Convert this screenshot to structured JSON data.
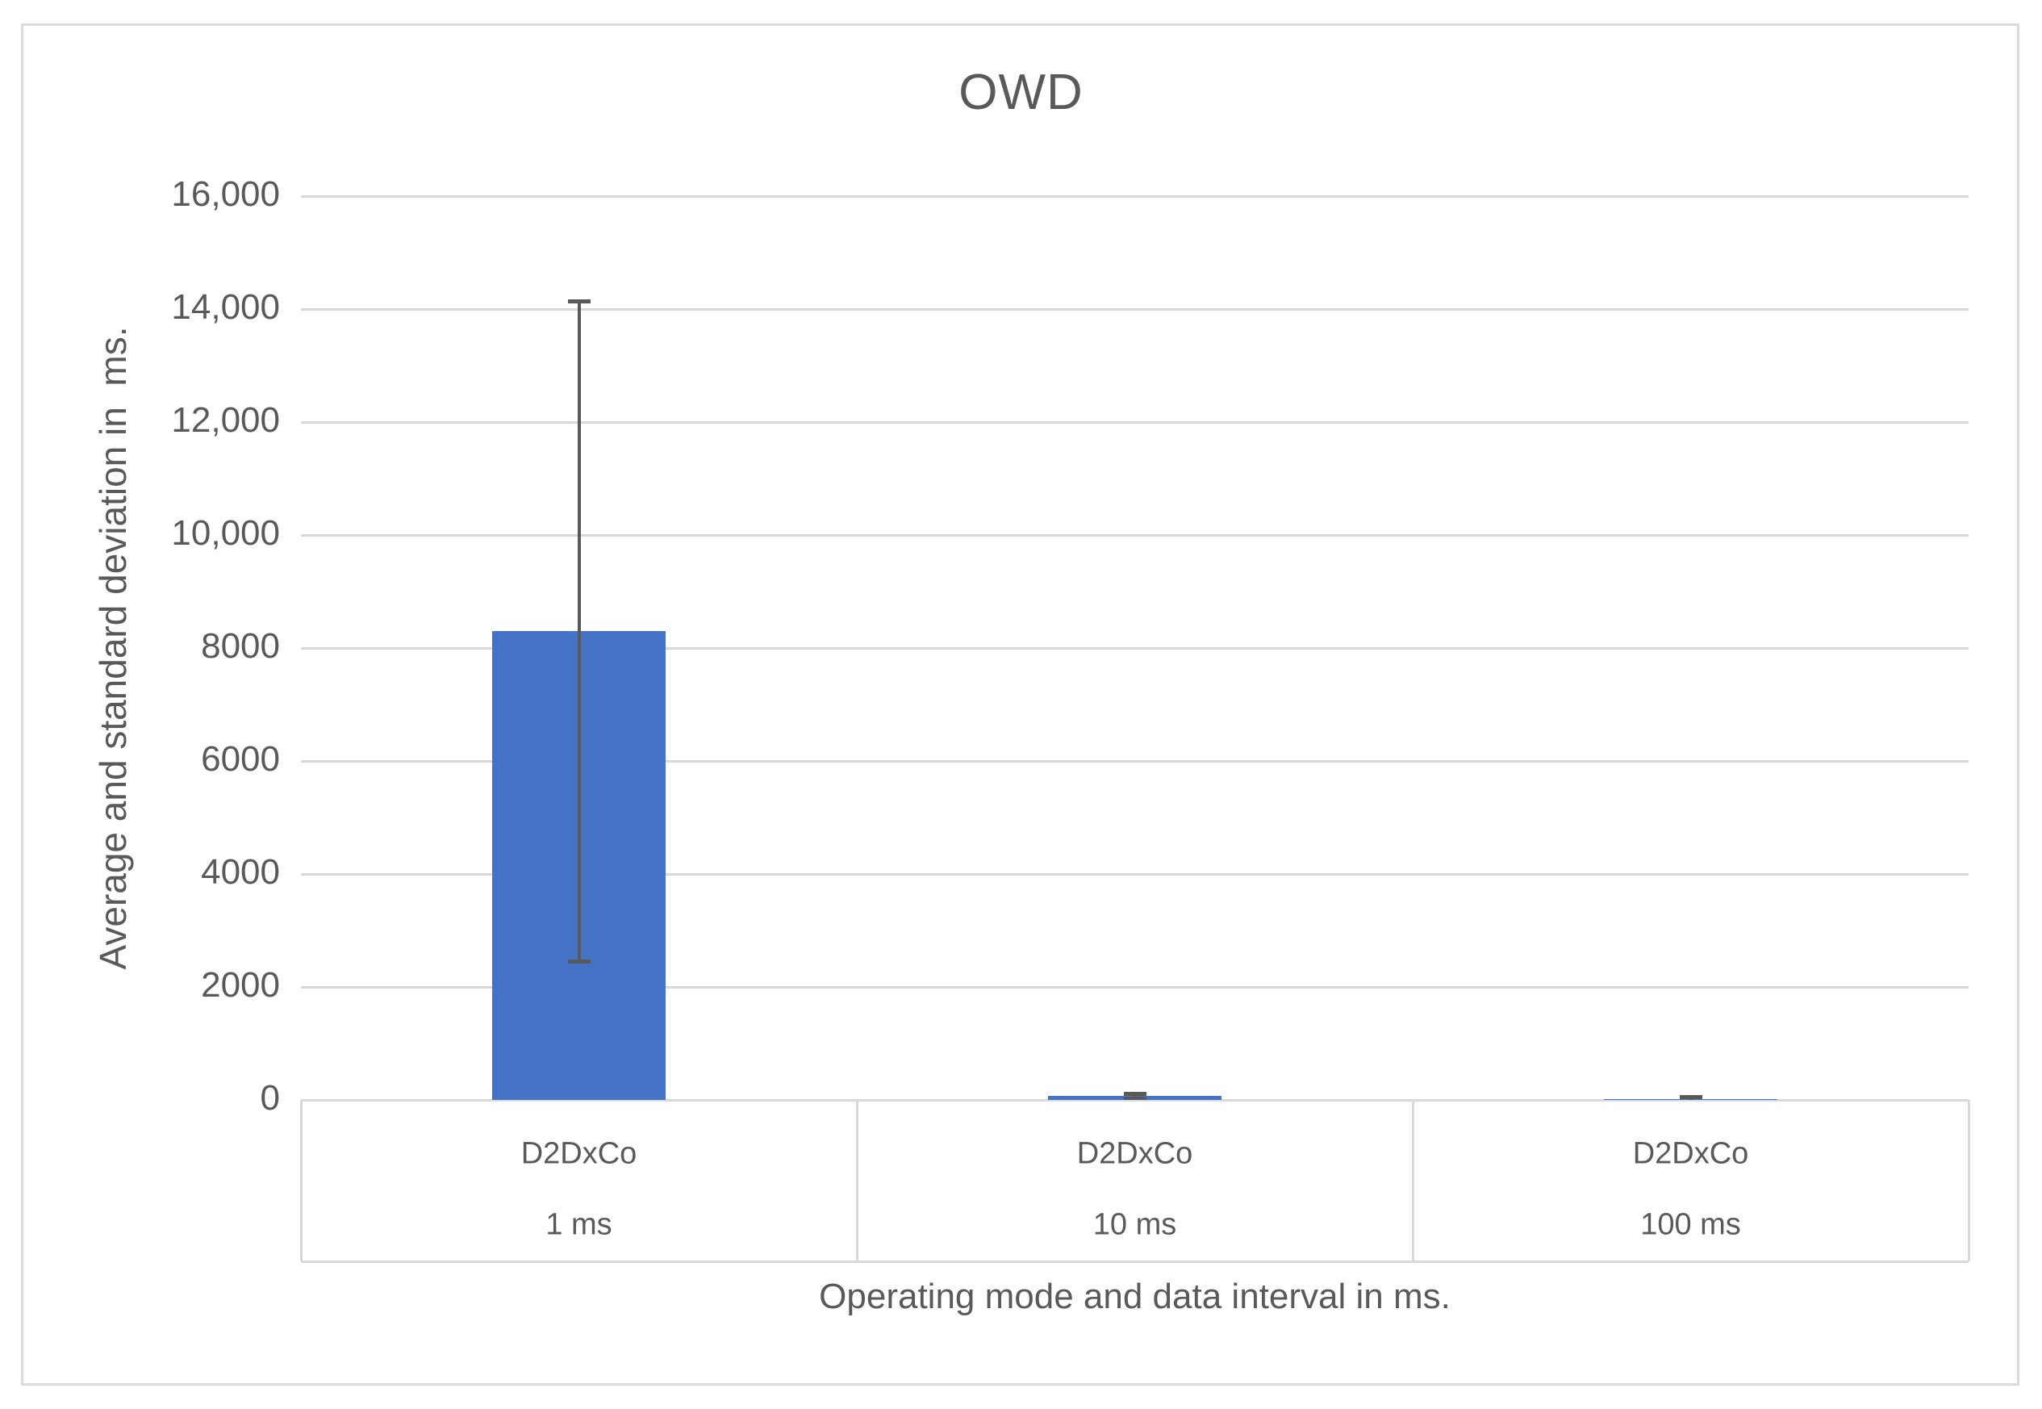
{
  "window": {
    "background": "#ffffff",
    "frame_border_color": "#dbdbdb"
  },
  "chart_data": {
    "type": "bar",
    "title": "OWD",
    "ylabel": "Average and standard deviation in  ms.",
    "xlabel": "Operating mode and data interval in ms.",
    "categories": [
      {
        "mode": "D2DxCo",
        "interval": "1 ms"
      },
      {
        "mode": "D2DxCo",
        "interval": "10 ms"
      },
      {
        "mode": "D2DxCo",
        "interval": "100 ms"
      }
    ],
    "series": [
      {
        "name": "Average",
        "values": [
          8300,
          65,
          8
        ],
        "stdev": [
          5850,
          50,
          45
        ]
      }
    ],
    "error_bar_top": [
      14150,
      115,
      53
    ],
    "error_bar_bottom": [
      2450,
      15,
      0
    ],
    "ylim": [
      0,
      16000
    ],
    "ytick_step": 2000,
    "yticks": [
      {
        "value": 0,
        "label": "0"
      },
      {
        "value": 2000,
        "label": "2000"
      },
      {
        "value": 4000,
        "label": "4000"
      },
      {
        "value": 6000,
        "label": "6000"
      },
      {
        "value": 8000,
        "label": "8000"
      },
      {
        "value": 10000,
        "label": "10,000"
      },
      {
        "value": 12000,
        "label": "12,000"
      },
      {
        "value": 14000,
        "label": "14,000"
      },
      {
        "value": 16000,
        "label": "16,000"
      }
    ],
    "grid": true,
    "legend": false,
    "bar_color": "#4472c4",
    "error_bar_color": "#595959",
    "gridline_color": "#d9d9d9",
    "text_color": "#595959"
  }
}
